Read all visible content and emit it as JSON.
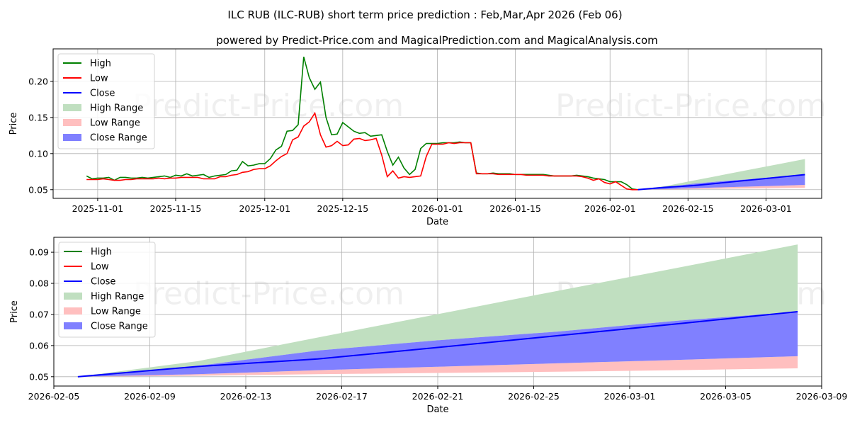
{
  "title": "ILC RUB (ILC-RUB) short term price prediction : Feb,Mar,Apr 2026 (Feb 06)",
  "subtitle": "powered by Predict-Price.com and MagicalPrediction.com and MagicalAnalysis.com",
  "watermark": "Predict-Price.com",
  "colors": {
    "high": "#008000",
    "low": "#ff0000",
    "close": "#0000ff",
    "high_range": "#c0dfc0",
    "low_range": "#ffbfbf",
    "close_range": "#8080ff"
  },
  "legend": [
    "High",
    "Low",
    "Close",
    "High Range",
    "Low Range",
    "Close Range"
  ],
  "chart_data": [
    {
      "type": "line",
      "xlabel": "Date",
      "ylabel": "Price",
      "xlim": [
        "2025-10-24",
        "2026-03-11"
      ],
      "ylim": [
        0.038,
        0.245
      ],
      "grid": true,
      "legend_position": "top-left",
      "x_ticks": [
        "2025-11-01",
        "2025-11-15",
        "2025-12-01",
        "2025-12-15",
        "2026-01-01",
        "2026-01-15",
        "2026-02-01",
        "2026-02-15",
        "2026-03-01"
      ],
      "y_ticks": [
        "0.05",
        "0.10",
        "0.15",
        "0.20"
      ],
      "history_start": "2025-10-30",
      "high": [
        0.069,
        0.065,
        0.066,
        0.066,
        0.067,
        0.063,
        0.067,
        0.067,
        0.066,
        0.066,
        0.067,
        0.066,
        0.067,
        0.068,
        0.069,
        0.067,
        0.07,
        0.069,
        0.072,
        0.069,
        0.07,
        0.071,
        0.067,
        0.069,
        0.07,
        0.071,
        0.076,
        0.077,
        0.089,
        0.083,
        0.084,
        0.086,
        0.086,
        0.093,
        0.105,
        0.11,
        0.131,
        0.132,
        0.14,
        0.234,
        0.205,
        0.189,
        0.199,
        0.15,
        0.126,
        0.127,
        0.143,
        0.137,
        0.131,
        0.128,
        0.129,
        0.124,
        0.125,
        0.126,
        0.103,
        0.084,
        0.095,
        0.08,
        0.071,
        0.078,
        0.107,
        0.114,
        0.114,
        0.114,
        0.115,
        0.115,
        0.115,
        0.116,
        0.115,
        0.115,
        0.073,
        0.072,
        0.072,
        0.073,
        0.072,
        0.072,
        0.072,
        0.071,
        0.071,
        0.071,
        0.071,
        0.071,
        0.071,
        0.07,
        0.069,
        0.069,
        0.069,
        0.069,
        0.07,
        0.069,
        0.068,
        0.066,
        0.065,
        0.064,
        0.061,
        0.061,
        0.061,
        0.057,
        0.051,
        0.05
      ],
      "low": [
        0.064,
        0.064,
        0.064,
        0.065,
        0.064,
        0.063,
        0.063,
        0.064,
        0.064,
        0.065,
        0.065,
        0.065,
        0.065,
        0.066,
        0.065,
        0.066,
        0.066,
        0.067,
        0.067,
        0.067,
        0.067,
        0.065,
        0.065,
        0.065,
        0.068,
        0.068,
        0.07,
        0.071,
        0.074,
        0.075,
        0.078,
        0.079,
        0.079,
        0.083,
        0.09,
        0.096,
        0.1,
        0.119,
        0.123,
        0.138,
        0.144,
        0.156,
        0.126,
        0.109,
        0.111,
        0.117,
        0.111,
        0.112,
        0.12,
        0.121,
        0.118,
        0.119,
        0.121,
        0.098,
        0.068,
        0.076,
        0.066,
        0.068,
        0.067,
        0.068,
        0.069,
        0.096,
        0.113,
        0.113,
        0.113,
        0.115,
        0.114,
        0.115,
        0.115,
        0.115,
        0.072,
        0.072,
        0.072,
        0.072,
        0.071,
        0.071,
        0.071,
        0.071,
        0.071,
        0.07,
        0.07,
        0.07,
        0.07,
        0.069,
        0.069,
        0.069,
        0.069,
        0.069,
        0.069,
        0.068,
        0.066,
        0.063,
        0.065,
        0.06,
        0.058,
        0.061,
        0.056,
        0.051,
        0.05,
        0.05
      ]
    },
    {
      "type": "area",
      "xlabel": "Date",
      "ylabel": "Price",
      "xlim": [
        "2026-02-05",
        "2026-03-09"
      ],
      "ylim": [
        0.047,
        0.0948
      ],
      "grid": true,
      "legend_position": "top-left",
      "x_ticks": [
        "2026-02-05",
        "2026-02-09",
        "2026-02-13",
        "2026-02-17",
        "2026-02-21",
        "2026-02-25",
        "2026-03-01",
        "2026-03-05",
        "2026-03-09"
      ],
      "y_ticks": [
        "0.05",
        "0.06",
        "0.07",
        "0.08",
        "0.09"
      ]
    }
  ],
  "forecast": {
    "dates": [
      "2026-02-06",
      "2026-02-11",
      "2026-02-16",
      "2026-02-21",
      "2026-02-26",
      "2026-03-03",
      "2026-03-08"
    ],
    "close": [
      0.05,
      0.0533,
      0.0557,
      0.0594,
      0.0632,
      0.067,
      0.0709
    ],
    "high_range": [
      0.05,
      0.055,
      0.0626,
      0.0701,
      0.0776,
      0.085,
      0.0925
    ],
    "close_range_top": [
      0.05,
      0.0535,
      0.0584,
      0.0617,
      0.0645,
      0.068,
      0.0709
    ],
    "close_range_bottom": [
      0.05,
      0.0508,
      0.0521,
      0.0532,
      0.0543,
      0.0554,
      0.0566
    ],
    "low_range_bottom": [
      0.05,
      0.0503,
      0.0508,
      0.0512,
      0.0516,
      0.0521,
      0.0527
    ]
  }
}
